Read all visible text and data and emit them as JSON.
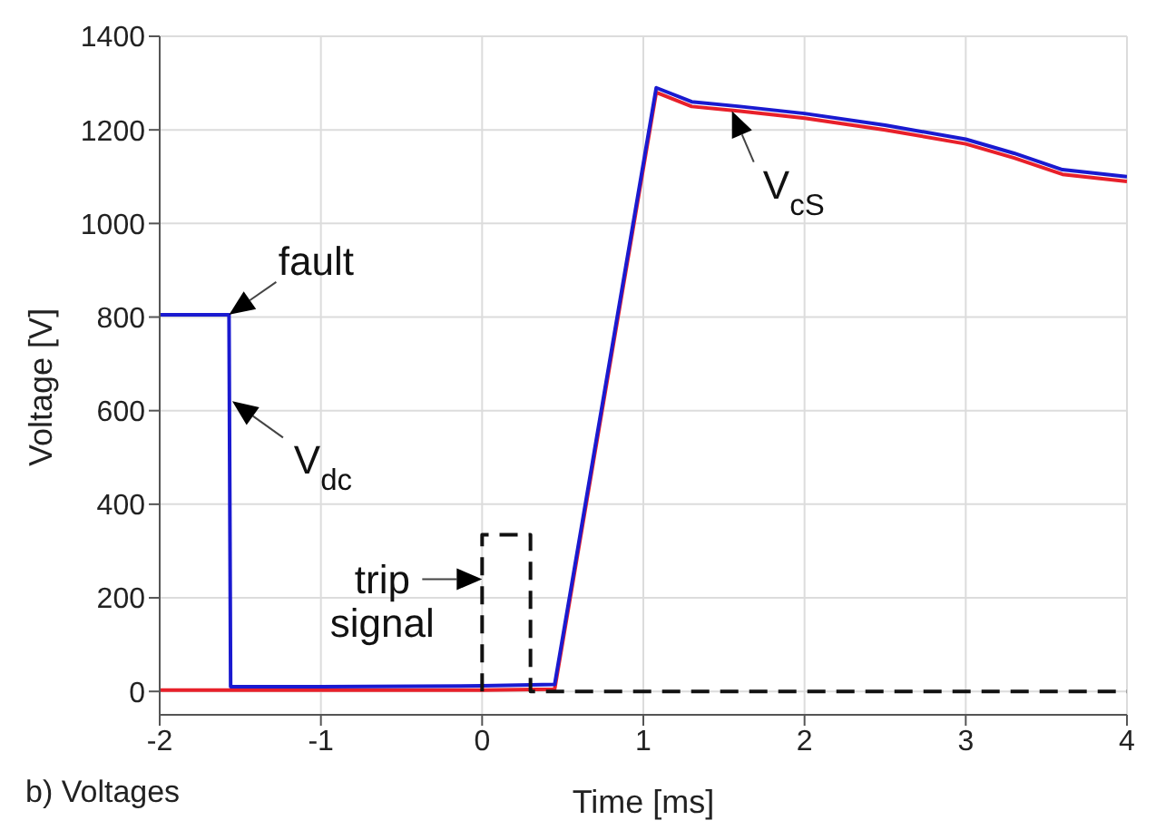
{
  "chart_data": {
    "type": "line",
    "xlabel": "Time [ms]",
    "ylabel": "Voltage [V]",
    "xlim": [
      -2,
      4
    ],
    "xticks": [
      -2,
      -1,
      0,
      1,
      2,
      3,
      4
    ],
    "ylim": [
      -50,
      1400
    ],
    "yticks": [
      0,
      200,
      400,
      600,
      800,
      1000,
      1200,
      1400
    ],
    "grid": true,
    "legend": false,
    "series": [
      {
        "color": "#e8202a",
        "x": [
          -2,
          -1,
          0,
          0.45,
          1.08,
          1.3,
          1.6,
          2,
          2.5,
          3,
          3.3,
          3.6,
          4
        ],
        "values": [
          3,
          3,
          3,
          5,
          1280,
          1250,
          1240,
          1225,
          1200,
          1170,
          1140,
          1105,
          1090
        ]
      },
      {
        "color": "#1a1ad0",
        "x": [
          -2,
          -1.57,
          -1.56,
          -1,
          0,
          0.45,
          1.08,
          1.3,
          1.6,
          2,
          2.5,
          3,
          3.3,
          3.6,
          4
        ],
        "values": [
          805,
          805,
          10,
          10,
          12,
          15,
          1290,
          1260,
          1250,
          1235,
          1210,
          1180,
          1150,
          1115,
          1100
        ]
      },
      {
        "color": "#111111",
        "line_style": "dashed",
        "x": [
          0,
          0,
          0.3,
          0.3,
          0.5,
          1,
          2,
          3,
          4
        ],
        "values": [
          0,
          335,
          335,
          0,
          0,
          0,
          0,
          0,
          0
        ]
      }
    ],
    "annotations": [
      {
        "text": "fault",
        "x": -1.57,
        "y": 805
      },
      {
        "text": "V$_{dc}$",
        "x": -1.55,
        "y": 620
      },
      {
        "text": "V$_{cS}$",
        "x": 1.55,
        "y": 1240
      },
      {
        "text": "trip signal",
        "x": 0,
        "y": 240
      },
      "b) Voltages"
    ]
  }
}
